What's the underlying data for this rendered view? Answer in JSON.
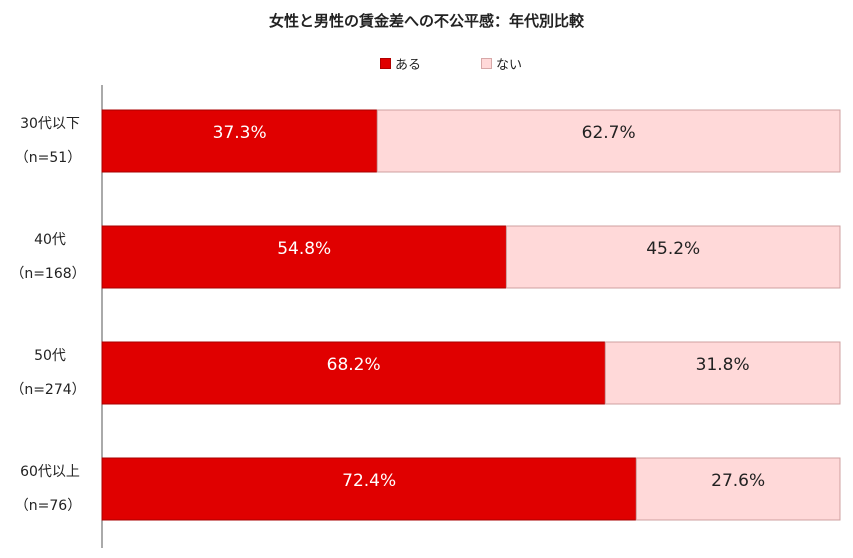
{
  "chart_data": {
    "type": "bar",
    "orientation": "horizontal",
    "stacked": true,
    "title": "女性と男性の賃金差への不公平感：年代別比較",
    "legend_position": "top",
    "categories": [
      {
        "line1": "30代以下",
        "line2": "（n=51）"
      },
      {
        "line1": "40代",
        "line2": "（n=168）"
      },
      {
        "line1": "50代",
        "line2": "（n=274）"
      },
      {
        "line1": "60代以上",
        "line2": "（n=76）"
      }
    ],
    "series": [
      {
        "name": "ある",
        "color": "#e00000",
        "values": [
          37.3,
          54.8,
          68.2,
          72.4
        ],
        "labels": [
          "37.3%",
          "54.8%",
          "68.2%",
          "72.4%"
        ]
      },
      {
        "name": "ない",
        "color": "#ffd9d9",
        "values": [
          62.7,
          45.2,
          31.8,
          27.6
        ],
        "labels": [
          "62.7%",
          "45.2%",
          "31.8%",
          "27.6%"
        ]
      }
    ],
    "xlim": [
      0,
      100
    ]
  }
}
